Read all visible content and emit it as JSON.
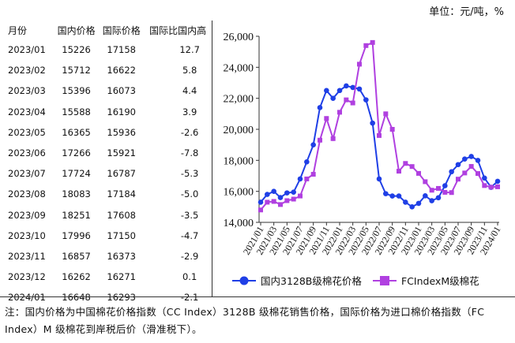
{
  "unit_label": "单位：元/吨，%",
  "table": {
    "headers": [
      "月份",
      "国内价格",
      "国际价格",
      "国际比国内高"
    ],
    "rows": [
      [
        "2023/01",
        "15226",
        "17158",
        "12.7"
      ],
      [
        "2023/02",
        "15712",
        "16622",
        "5.8"
      ],
      [
        "2023/03",
        "15396",
        "16073",
        "4.4"
      ],
      [
        "2023/04",
        "15588",
        "16190",
        "3.9"
      ],
      [
        "2023/05",
        "16365",
        "15936",
        "-2.6"
      ],
      [
        "2023/06",
        "17266",
        "15921",
        "-7.8"
      ],
      [
        "2023/07",
        "17724",
        "16787",
        "-5.3"
      ],
      [
        "2023/08",
        "18083",
        "17184",
        "-5.0"
      ],
      [
        "2023/09",
        "18251",
        "17608",
        "-3.5"
      ],
      [
        "2023/10",
        "17996",
        "17150",
        "-4.7"
      ],
      [
        "2023/11",
        "16857",
        "16373",
        "-2.9"
      ],
      [
        "2023/12",
        "16262",
        "16271",
        "0.1"
      ],
      [
        "2024/01",
        "16648",
        "16293",
        "-2.1"
      ]
    ]
  },
  "chart_data": {
    "type": "line",
    "x": [
      "2021/01",
      "2021/02",
      "2021/03",
      "2021/04",
      "2021/05",
      "2021/06",
      "2021/07",
      "2021/08",
      "2021/09",
      "2021/10",
      "2021/11",
      "2021/12",
      "2022/01",
      "2022/02",
      "2022/03",
      "2022/04",
      "2022/05",
      "2022/06",
      "2022/07",
      "2022/08",
      "2022/09",
      "2022/10",
      "2022/11",
      "2022/12",
      "2023/01",
      "2023/02",
      "2023/03",
      "2023/04",
      "2023/05",
      "2023/06",
      "2023/07",
      "2023/08",
      "2023/09",
      "2023/10",
      "2023/11",
      "2023/12",
      "2024/01"
    ],
    "tick_labels": [
      "2021/01",
      "2021/03",
      "2021/05",
      "2021/07",
      "2021/09",
      "2021/11",
      "2022/01",
      "2022/03",
      "2022/05",
      "2022/07",
      "2022/09",
      "2022/11",
      "2023/01",
      "2023/03",
      "2023/05",
      "2023/07",
      "2023/09",
      "2023/11",
      "2024/01"
    ],
    "series": [
      {
        "name": "国内3128B级棉花价格",
        "color": "#1f3fe6",
        "marker": "circle",
        "values": [
          15300,
          15800,
          16000,
          15600,
          15900,
          15950,
          16800,
          17900,
          19000,
          21400,
          22500,
          22000,
          22500,
          22800,
          22700,
          22600,
          21900,
          20400,
          16800,
          15850,
          15700,
          15700,
          15300,
          15000,
          15226,
          15712,
          15396,
          15588,
          16365,
          17266,
          17724,
          18083,
          18251,
          17996,
          16857,
          16262,
          16648
        ]
      },
      {
        "name": "FCIndexM级棉花",
        "color": "#b040e0",
        "marker": "square",
        "values": [
          14800,
          15300,
          15350,
          15150,
          15400,
          15500,
          15700,
          16800,
          17100,
          19300,
          20700,
          19400,
          21100,
          21900,
          21700,
          24200,
          25400,
          25600,
          19600,
          21000,
          20000,
          17300,
          17800,
          17600,
          17158,
          16622,
          16073,
          16190,
          15936,
          15921,
          16787,
          17184,
          17608,
          17150,
          16373,
          16271,
          16293
        ]
      }
    ],
    "yticks": [
      "14,000",
      "16,000",
      "18,000",
      "20,000",
      "22,000",
      "24,000",
      "26,000"
    ],
    "ylim": [
      14000,
      26000
    ],
    "legend_position": "bottom"
  },
  "note": "注：国内价格为中国棉花价格指数（CC Index）3128B 级棉花销售价格，国际价格为进口棉价格指数（FC Index）M 级棉花到岸税后价（滑准税下）。"
}
